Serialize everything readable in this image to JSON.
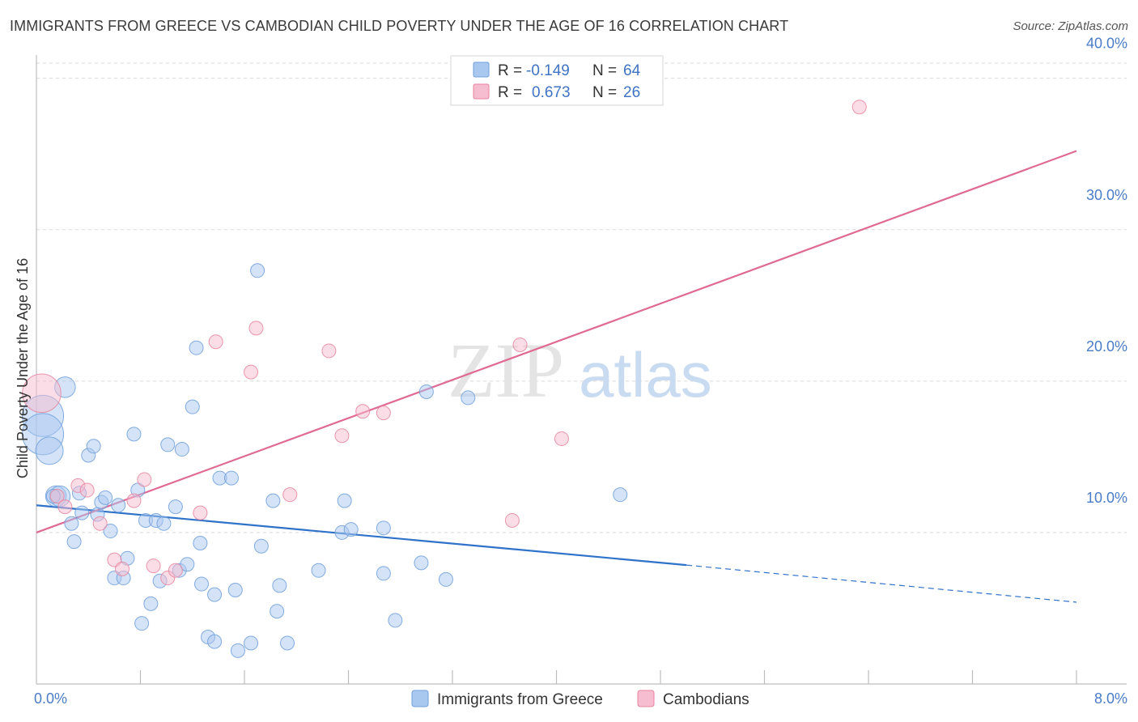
{
  "title": "IMMIGRANTS FROM GREECE VS CAMBODIAN CHILD POVERTY UNDER THE AGE OF 16 CORRELATION CHART",
  "source": "Source: ZipAtlas.com",
  "watermark": {
    "part1": "ZIP",
    "part2": "atlas"
  },
  "colors": {
    "greece_fill": "#a9c8ef",
    "greece_stroke": "#6f9fdc",
    "greece_line": "#2f72c9",
    "cambodian_fill": "#f6bcd0",
    "cambodian_stroke": "#e8859f",
    "cambodian_line": "#e06a93",
    "grid": "#d7d7d7",
    "tick_text": "#4a7cc7"
  },
  "legend": {
    "r_label": "R =",
    "n_label": "N =",
    "rows": [
      {
        "r": "-0.149",
        "n": "64"
      },
      {
        "r": "0.673",
        "n": "26"
      }
    ]
  },
  "chart_data": {
    "type": "scatter",
    "ylabel": "Child Poverty Under the Age of 16",
    "xlim": [
      0,
      8
    ],
    "ylim": [
      0,
      41
    ],
    "x_tick_labels": [
      {
        "value": 0,
        "label": "0.0%"
      },
      {
        "value": 8,
        "label": "8.0%"
      }
    ],
    "y_tick_labels": [
      {
        "value": 10,
        "label": "10.0%"
      },
      {
        "value": 20,
        "label": "20.0%"
      },
      {
        "value": 30,
        "label": "30.0%"
      },
      {
        "value": 40,
        "label": "40.0%"
      }
    ],
    "grid": true,
    "series": [
      {
        "name": "Immigrants from Greece",
        "points": [
          [
            0.05,
            17.7,
            3
          ],
          [
            0.05,
            16.5,
            3
          ],
          [
            0.1,
            15.4,
            2
          ],
          [
            0.15,
            12.4,
            1.5
          ],
          [
            0.18,
            12.4,
            1.5
          ],
          [
            0.22,
            19.6,
            1.5
          ],
          [
            0.27,
            10.6,
            1
          ],
          [
            0.29,
            9.4,
            1
          ],
          [
            0.33,
            12.6,
            1
          ],
          [
            0.35,
            11.3,
            1
          ],
          [
            0.4,
            15.1,
            1
          ],
          [
            0.44,
            15.7,
            1
          ],
          [
            0.47,
            11.2,
            1
          ],
          [
            0.5,
            12.0,
            1
          ],
          [
            0.53,
            12.3,
            1
          ],
          [
            0.57,
            10.1,
            1
          ],
          [
            0.6,
            7.0,
            1
          ],
          [
            0.63,
            11.8,
            1
          ],
          [
            0.67,
            7.0,
            1
          ],
          [
            0.7,
            8.3,
            1
          ],
          [
            0.75,
            16.5,
            1
          ],
          [
            0.78,
            12.8,
            1
          ],
          [
            0.81,
            4.0,
            1
          ],
          [
            0.84,
            10.8,
            1
          ],
          [
            0.88,
            5.3,
            1
          ],
          [
            0.92,
            10.8,
            1
          ],
          [
            0.95,
            6.8,
            1
          ],
          [
            0.98,
            10.6,
            1
          ],
          [
            1.01,
            15.8,
            1
          ],
          [
            1.07,
            11.7,
            1
          ],
          [
            1.1,
            7.5,
            1
          ],
          [
            1.12,
            15.5,
            1
          ],
          [
            1.16,
            7.9,
            1
          ],
          [
            1.2,
            18.3,
            1
          ],
          [
            1.23,
            22.2,
            1
          ],
          [
            1.26,
            9.3,
            1
          ],
          [
            1.27,
            6.6,
            1
          ],
          [
            1.32,
            3.1,
            1
          ],
          [
            1.37,
            2.8,
            1
          ],
          [
            1.37,
            5.9,
            1
          ],
          [
            1.41,
            13.6,
            1
          ],
          [
            1.5,
            13.6,
            1
          ],
          [
            1.53,
            6.2,
            1
          ],
          [
            1.55,
            2.2,
            1
          ],
          [
            1.65,
            2.7,
            1
          ],
          [
            1.7,
            27.3,
            1
          ],
          [
            1.73,
            9.1,
            1
          ],
          [
            1.82,
            12.1,
            1
          ],
          [
            1.85,
            4.8,
            1
          ],
          [
            1.87,
            6.5,
            1
          ],
          [
            1.93,
            2.7,
            1
          ],
          [
            2.17,
            7.5,
            1
          ],
          [
            2.35,
            10.0,
            1
          ],
          [
            2.37,
            12.1,
            1
          ],
          [
            2.42,
            10.2,
            1
          ],
          [
            2.67,
            7.3,
            1
          ],
          [
            2.67,
            10.3,
            1
          ],
          [
            2.76,
            4.2,
            1
          ],
          [
            2.96,
            8.0,
            1
          ],
          [
            3.0,
            19.3,
            1
          ],
          [
            3.15,
            6.9,
            1
          ],
          [
            3.32,
            18.9,
            1
          ],
          [
            4.49,
            12.5,
            1
          ],
          [
            0.13,
            12.4,
            1
          ]
        ]
      },
      {
        "name": "Cambodians",
        "points": [
          [
            0.04,
            19.2,
            2.8
          ],
          [
            0.16,
            12.4,
            1
          ],
          [
            0.22,
            11.7,
            1
          ],
          [
            0.32,
            13.1,
            1
          ],
          [
            0.39,
            12.8,
            1
          ],
          [
            0.49,
            10.6,
            1
          ],
          [
            0.6,
            8.2,
            1
          ],
          [
            0.66,
            7.6,
            1
          ],
          [
            0.75,
            12.1,
            1
          ],
          [
            0.83,
            13.5,
            1
          ],
          [
            0.9,
            7.8,
            1
          ],
          [
            1.01,
            7.0,
            1
          ],
          [
            1.07,
            7.5,
            1
          ],
          [
            1.26,
            11.3,
            1
          ],
          [
            1.38,
            22.6,
            1
          ],
          [
            1.65,
            20.6,
            1
          ],
          [
            1.69,
            23.5,
            1
          ],
          [
            1.95,
            12.5,
            1
          ],
          [
            2.25,
            22.0,
            1
          ],
          [
            2.35,
            16.4,
            1
          ],
          [
            2.51,
            18.0,
            1
          ],
          [
            2.67,
            17.9,
            1
          ],
          [
            3.66,
            10.8,
            1
          ],
          [
            3.72,
            22.4,
            1
          ],
          [
            4.04,
            16.2,
            1
          ],
          [
            6.33,
            38.1,
            1
          ]
        ]
      }
    ],
    "trendlines": [
      {
        "series": "Immigrants from Greece",
        "x0": 0,
        "y0": 11.8,
        "x1": 5.0,
        "y1": 7.85,
        "dashed_to_x": 8.0,
        "dashed_to_y": 5.4
      },
      {
        "series": "Cambodians",
        "x0": 0,
        "y0": 10.0,
        "x1": 8.0,
        "y1": 35.2
      }
    ]
  }
}
